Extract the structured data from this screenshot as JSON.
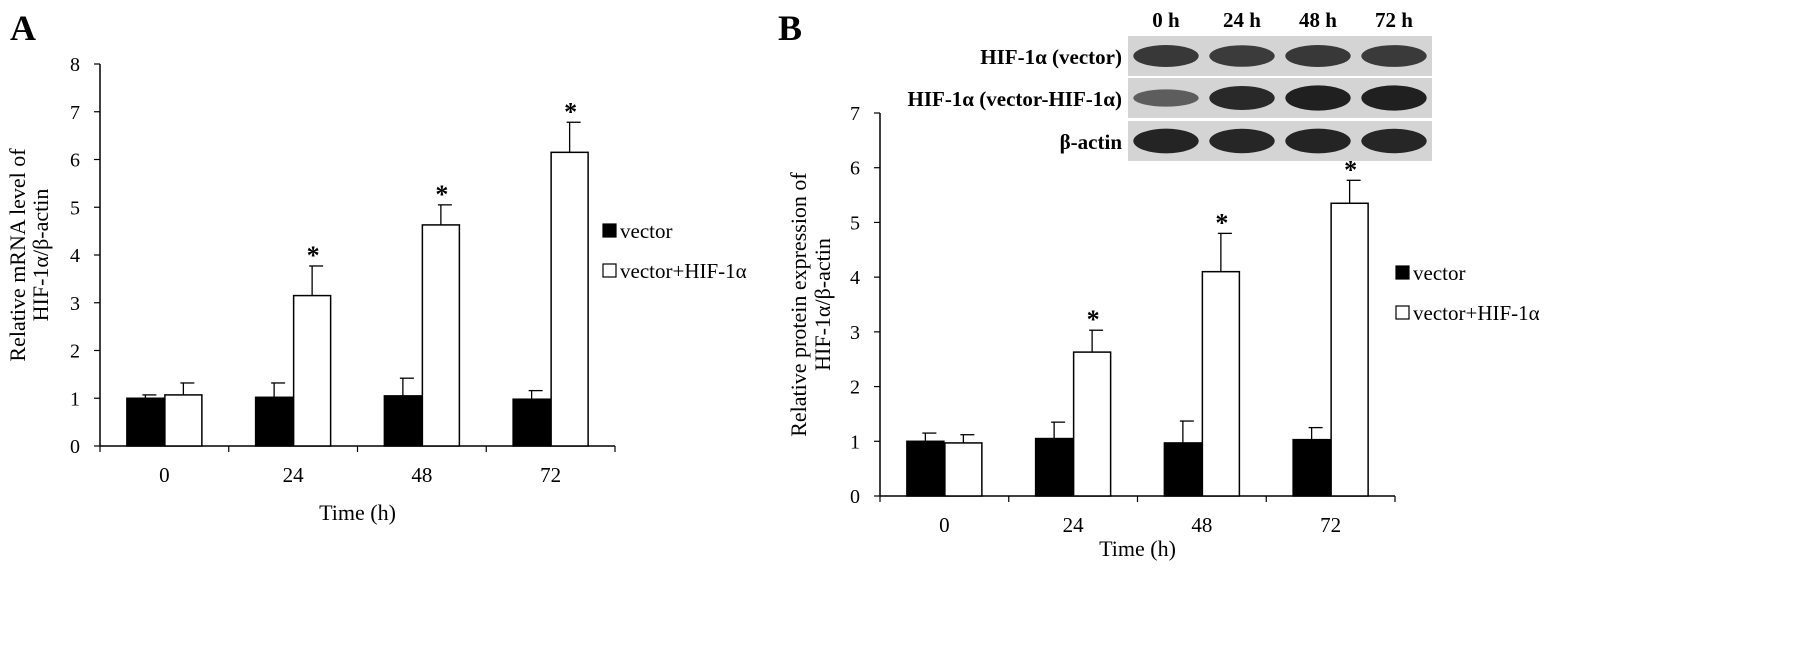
{
  "colors": {
    "vector": "#000000",
    "vector_hif": "#ffffff",
    "axis": "#000000",
    "blot_bg": "#d4d4d4",
    "band": "#1a1a1a"
  },
  "chart_data": [
    {
      "panel": "A",
      "type": "bar",
      "categories": [
        "0",
        "24",
        "48",
        "72"
      ],
      "xlabel": "Time (h)",
      "ylabel": [
        "Relative mRNA level of",
        "HIF-1α/β-actin"
      ],
      "ylim": [
        0,
        8
      ],
      "yticks": [
        "0",
        "1",
        "2",
        "3",
        "4",
        "5",
        "6",
        "7",
        "8"
      ],
      "legend_position": "right",
      "grid": false,
      "series": [
        {
          "name": "vector",
          "values": [
            1.0,
            1.02,
            1.05,
            0.98
          ],
          "errors": [
            0.07,
            0.3,
            0.37,
            0.18
          ],
          "sig": [
            "",
            "",
            "",
            ""
          ]
        },
        {
          "name": "vector+HIF-1α",
          "values": [
            1.07,
            3.15,
            4.63,
            6.15
          ],
          "errors": [
            0.25,
            0.62,
            0.42,
            0.63
          ],
          "sig": [
            "",
            "*",
            "*",
            "*"
          ]
        }
      ]
    },
    {
      "panel": "B",
      "type": "bar",
      "categories": [
        "0",
        "24",
        "48",
        "72"
      ],
      "xlabel": "Time (h)",
      "ylabel": [
        "Relative protein expression of",
        "HIF-1α/β-actin"
      ],
      "ylim": [
        0,
        7
      ],
      "yticks": [
        "0",
        "1",
        "2",
        "3",
        "4",
        "5",
        "6",
        "7"
      ],
      "legend_position": "right",
      "grid": false,
      "series": [
        {
          "name": "vector",
          "values": [
            1.0,
            1.05,
            0.97,
            1.03
          ],
          "errors": [
            0.15,
            0.3,
            0.4,
            0.22
          ],
          "sig": [
            "",
            "",
            "",
            ""
          ]
        },
        {
          "name": "vector+HIF-1α",
          "values": [
            0.97,
            2.63,
            4.1,
            5.35
          ],
          "errors": [
            0.15,
            0.4,
            0.7,
            0.42
          ],
          "sig": [
            "",
            "*",
            "*",
            "*"
          ]
        }
      ]
    }
  ],
  "blot": {
    "time_labels": [
      "0 h",
      "24 h",
      "48 h",
      "72 h"
    ],
    "rows": [
      {
        "label": "HIF-1α (vector)",
        "intensity": [
          0.75,
          0.72,
          0.75,
          0.74
        ]
      },
      {
        "label": "HIF-1α (vector-HIF-1α)",
        "intensity": [
          0.45,
          0.88,
          0.95,
          0.95
        ]
      },
      {
        "label": "β-actin",
        "intensity": [
          0.92,
          0.9,
          0.92,
          0.9
        ]
      }
    ]
  }
}
